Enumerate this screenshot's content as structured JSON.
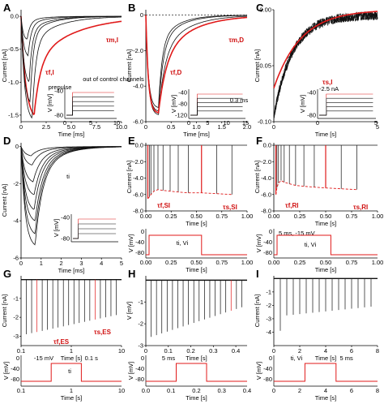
{
  "colors": {
    "red": "#e01a1a",
    "black": "#111111",
    "gray": "#888888"
  },
  "chart_data": [
    {
      "panel": "A",
      "type": "line",
      "xlabel": "Time [ms]",
      "ylabel": "Current [nA]",
      "xlim": [
        0,
        10
      ],
      "ylim": [
        -1.6,
        0.1
      ],
      "xticks": [
        "0",
        "2.5",
        "5.0",
        "7.5",
        "10.0"
      ],
      "yticks": [
        "0.0",
        "-0.5",
        "-1.0",
        "-1.5"
      ],
      "annotations": {
        "tau_m": "τm,I",
        "tau_f": "τf,I",
        "note": "out of control channels",
        "prepulse": "prepulse"
      },
      "inset_v": {
        "ylabel": "V [mV]",
        "yticks": [
          "-40",
          "-80"
        ],
        "xticks": [
          "0",
          "5",
          "10"
        ]
      },
      "traces": [
        {
          "color": "red",
          "peak": -1.5,
          "t_peak": 1.3,
          "rise": 0.45,
          "tau_fast": 0.6,
          "tau_slow": 4.0,
          "frac_fast": 0.55
        },
        {
          "color": "black",
          "peak": -1.55,
          "t_peak": 1.1,
          "rise": 0.35,
          "tau_fast": 0.35,
          "tau_slow": 2.5,
          "frac_fast": 0.75
        },
        {
          "color": "black",
          "peak": -1.3,
          "t_peak": 0.9,
          "rise": 0.3,
          "tau_fast": 0.3,
          "tau_slow": 2.0,
          "frac_fast": 0.8
        },
        {
          "color": "black",
          "peak": -1.0,
          "t_peak": 0.8,
          "rise": 0.28,
          "tau_fast": 0.3,
          "tau_slow": 2.0,
          "frac_fast": 0.8
        },
        {
          "color": "black",
          "peak": -0.6,
          "t_peak": 0.7,
          "rise": 0.25,
          "tau_fast": 0.3,
          "tau_slow": 1.8,
          "frac_fast": 0.8
        },
        {
          "color": "black",
          "peak": -0.35,
          "t_peak": 0.6,
          "rise": 0.2,
          "tau_fast": 0.3,
          "tau_slow": 1.5,
          "frac_fast": 0.8
        }
      ]
    },
    {
      "panel": "B",
      "type": "line",
      "xlabel": "Time [ms]",
      "ylabel": "Current [nA]",
      "xlim": [
        0,
        2.0
      ],
      "ylim": [
        -6.0,
        0.3
      ],
      "xticks": [
        "0",
        "0.5",
        "1.0",
        "1.5",
        "2.0"
      ],
      "yticks": [
        "0",
        "-2.0",
        "-4.0",
        "-6.0"
      ],
      "annotations": {
        "tau_m": "τm,D",
        "tau_f": "τf,D",
        "dur": "0.3 ms"
      },
      "inset_v": {
        "ylabel": "V [mV]",
        "yticks": [
          "-40",
          "-80",
          "-120"
        ],
        "xticks": [
          "0",
          "5",
          "10",
          "15"
        ]
      },
      "traces": [
        {
          "color": "black",
          "peak": -5.6,
          "t_peak": 0.25,
          "rise": 0.05,
          "tau_fast": 0.12,
          "tau_slow": 0.5,
          "frac_fast": 0.6
        },
        {
          "color": "black",
          "peak": -5.4,
          "t_peak": 0.25,
          "rise": 0.05,
          "tau_fast": 0.09,
          "tau_slow": 0.4,
          "frac_fast": 0.7
        },
        {
          "color": "black",
          "peak": -5.2,
          "t_peak": 0.25,
          "rise": 0.05,
          "tau_fast": 0.07,
          "tau_slow": 0.35,
          "frac_fast": 0.7
        },
        {
          "color": "red",
          "peak": -5.5,
          "t_peak": 0.25,
          "rise": 0.05,
          "tau_fast": 0.15,
          "tau_slow": 0.6,
          "frac_fast": 0.55
        }
      ]
    },
    {
      "panel": "C",
      "type": "line",
      "xlabel": "Time [s]",
      "ylabel": "Current [nA]",
      "xlim": [
        0,
        5
      ],
      "ylim": [
        -0.1,
        0.0
      ],
      "xticks": [
        "0",
        "5"
      ],
      "yticks": [
        "0.00",
        "-0.05",
        "-0.10"
      ],
      "annotations": {
        "tau": "τs,I",
        "inset_label": "-2.5 nA"
      },
      "inset_v": {
        "ylabel": "V [mV]",
        "yticks": [
          "-40",
          "-80"
        ],
        "xticks": [
          "0",
          "5"
        ]
      }
    },
    {
      "panel": "D",
      "type": "line",
      "xlabel": "Time [ms]",
      "ylabel": "Current [nA]",
      "xlim": [
        0,
        5
      ],
      "ylim": [
        -6.0,
        0.2
      ],
      "xticks": [
        "0",
        "1",
        "2",
        "3",
        "4",
        "5"
      ],
      "yticks": [
        "0",
        "-2",
        "-4",
        "-6"
      ],
      "annotations": {
        "t": "ti"
      },
      "inset_v": {
        "ylabel": "V [mV]",
        "yticks": [
          "-40",
          "-80"
        ]
      },
      "traces": [
        {
          "color": "black",
          "peak": -5.3,
          "t_peak": 0.7,
          "rise": 0.2,
          "tau_fast": 0.35,
          "tau_slow": 1.0,
          "frac_fast": 0.7
        },
        {
          "color": "black",
          "peak": -4.7,
          "t_peak": 0.7,
          "rise": 0.2,
          "tau_fast": 0.35,
          "tau_slow": 1.0,
          "frac_fast": 0.7
        },
        {
          "color": "black",
          "peak": -4.0,
          "t_peak": 0.7,
          "rise": 0.2,
          "tau_fast": 0.35,
          "tau_slow": 1.0,
          "frac_fast": 0.7
        },
        {
          "color": "black",
          "peak": -3.4,
          "t_peak": 0.65,
          "rise": 0.2,
          "tau_fast": 0.35,
          "tau_slow": 1.0,
          "frac_fast": 0.7
        },
        {
          "color": "black",
          "peak": -2.6,
          "t_peak": 0.65,
          "rise": 0.2,
          "tau_fast": 0.35,
          "tau_slow": 1.0,
          "frac_fast": 0.7
        },
        {
          "color": "black",
          "peak": -1.9,
          "t_peak": 0.6,
          "rise": 0.2,
          "tau_fast": 0.35,
          "tau_slow": 1.0,
          "frac_fast": 0.7
        },
        {
          "color": "black",
          "peak": -1.0,
          "t_peak": 0.55,
          "rise": 0.2,
          "tau_fast": 0.35,
          "tau_slow": 1.0,
          "frac_fast": 0.7
        },
        {
          "color": "black",
          "peak": -0.5,
          "t_peak": 0.5,
          "rise": 0.2,
          "tau_fast": 0.35,
          "tau_slow": 1.0,
          "frac_fast": 0.7
        }
      ]
    },
    {
      "panel": "E",
      "type": "line",
      "xlabel": "Time [s]",
      "ylabel": "Current [nA]",
      "xlim": [
        0,
        1.0
      ],
      "ylim": [
        -8.0,
        0.3
      ],
      "xticks": [
        "0.00",
        "0.25",
        "0.50",
        "0.75",
        "1.00"
      ],
      "yticks": [
        "0.0",
        "-2.0",
        "-4.0",
        "-6.0",
        "-8.0"
      ],
      "annotations": {
        "tau_f": "τf,SI",
        "tau_s": "τs,SI",
        "label": "ti, Vi"
      },
      "inset_v": {
        "ylabel": "V [mV]",
        "yticks": [
          "0",
          "-40",
          "-80"
        ]
      },
      "spikes": [
        {
          "t": 0.02,
          "v": -6.5,
          "red": true
        },
        {
          "t": 0.035,
          "v": -6.3,
          "red": false
        },
        {
          "t": 0.05,
          "v": -6.0,
          "red": false
        },
        {
          "t": 0.08,
          "v": -5.6,
          "red": false
        },
        {
          "t": 0.12,
          "v": -5.4,
          "red": false
        },
        {
          "t": 0.17,
          "v": -5.5,
          "red": false
        },
        {
          "t": 0.24,
          "v": -5.6,
          "red": false
        },
        {
          "t": 0.32,
          "v": -5.7,
          "red": false
        },
        {
          "t": 0.42,
          "v": -5.8,
          "red": false
        },
        {
          "t": 0.55,
          "v": -5.8,
          "red": true
        },
        {
          "t": 0.7,
          "v": -5.9,
          "red": false
        },
        {
          "t": 0.85,
          "v": -6.0,
          "red": false
        }
      ]
    },
    {
      "panel": "F",
      "type": "line",
      "xlabel": "Time [s]",
      "ylabel": "Current [nA]",
      "xlim": [
        0,
        1.0
      ],
      "ylim": [
        -8.0,
        0.3
      ],
      "xticks": [
        "0.00",
        "0.25",
        "0.50",
        "0.75",
        "1.00"
      ],
      "yticks": [
        "0.0",
        "-2.0",
        "-4.0",
        "-6.0",
        "-8.0"
      ],
      "annotations": {
        "tau_f": "τf,RI",
        "tau_s": "τs,RI",
        "label": "5 ms, -15 mV",
        "label2": "ti, Vi"
      },
      "inset_v": {
        "ylabel": "V [mV]",
        "yticks": [
          "0",
          "-40",
          "-80"
        ]
      },
      "spikes": [
        {
          "t": 0.02,
          "v": -6.0,
          "red": true
        },
        {
          "t": 0.03,
          "v": -5.2,
          "red": false
        },
        {
          "t": 0.045,
          "v": -4.6,
          "red": false
        },
        {
          "t": 0.07,
          "v": -4.3,
          "red": false
        },
        {
          "t": 0.1,
          "v": -4.5,
          "red": false
        },
        {
          "t": 0.15,
          "v": -4.7,
          "red": false
        },
        {
          "t": 0.21,
          "v": -4.9,
          "red": false
        },
        {
          "t": 0.29,
          "v": -5.0,
          "red": false
        },
        {
          "t": 0.39,
          "v": -5.1,
          "red": false
        },
        {
          "t": 0.5,
          "v": -5.2,
          "red": true
        },
        {
          "t": 0.65,
          "v": -5.3,
          "red": false
        },
        {
          "t": 0.8,
          "v": -5.4,
          "red": false
        }
      ]
    },
    {
      "panel": "G",
      "type": "line",
      "xlabel": "Time [s]",
      "ylabel": "Current [nA]",
      "xlim": [
        0.1,
        10
      ],
      "ylim": [
        -3.5,
        0.2
      ],
      "xticks": [
        "0.1",
        "1",
        "10"
      ],
      "yticks": [
        "-1",
        "-2",
        "-3"
      ],
      "annotations": {
        "tau_f": "τf,ES",
        "tau_s": "τs,ES",
        "label": "-15 mV",
        "label2": "0.1 s",
        "t": "ti"
      },
      "inset_v": {
        "ylabel": "V [mV]",
        "yticks": [
          "0",
          "-40",
          "-80"
        ]
      }
    },
    {
      "panel": "H",
      "type": "line",
      "xlabel": "Time [s]",
      "ylabel": "V [mV]",
      "xlim": [
        0,
        0.45
      ],
      "ylim": [
        -3.0,
        0.2
      ],
      "xticks": [
        "0",
        "0.1",
        "0.2",
        "0.3",
        "0.4"
      ],
      "yticks": [
        "-1",
        "-2",
        "-3"
      ],
      "annotations": {
        "label": "5 ms"
      },
      "inset_v": {
        "ylabel": "V [mV]",
        "yticks": [
          "0",
          "-40",
          "-80"
        ],
        "xticks": [
          "0.0",
          "0.1",
          "0.2",
          "0.3",
          "0.4"
        ]
      }
    },
    {
      "panel": "I",
      "type": "line",
      "xlabel": "Time [s]",
      "ylabel": "Current [nA]",
      "xlim": [
        0,
        8
      ],
      "ylim": [
        -5.0,
        0.2
      ],
      "xticks": [
        "0",
        "2",
        "4",
        "6",
        "8"
      ],
      "yticks": [
        "-1",
        "-2",
        "-3",
        "-4"
      ],
      "annotations": {
        "label": "ti, Vi",
        "label2": "5 ms"
      },
      "inset_v": {
        "ylabel": "V [mV]",
        "yticks": [
          "0",
          "-40",
          "-80"
        ]
      }
    }
  ]
}
